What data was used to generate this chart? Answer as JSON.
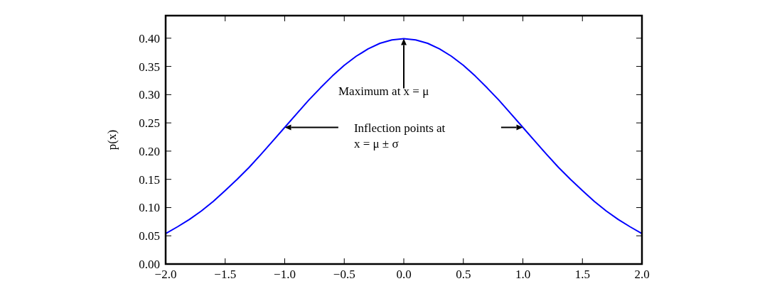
{
  "chart_data": {
    "type": "line",
    "ylabel": "p(x)",
    "x": [
      -2,
      -1.9,
      -1.8,
      -1.7,
      -1.6,
      -1.5,
      -1.4,
      -1.3,
      -1.2,
      -1.1,
      -1,
      -0.9,
      -0.8,
      -0.7,
      -0.6,
      -0.5,
      -0.4,
      -0.3,
      -0.2,
      -0.1,
      0,
      0.1,
      0.2,
      0.3,
      0.4,
      0.5,
      0.6,
      0.7,
      0.8,
      0.9,
      1,
      1.1,
      1.2,
      1.3,
      1.4,
      1.5,
      1.6,
      1.7,
      1.8,
      1.9,
      2
    ],
    "series": [
      {
        "color": "#0000ff",
        "values": [
          0.054,
          0.066,
          0.079,
          0.094,
          0.111,
          0.13,
          0.15,
          0.171,
          0.194,
          0.218,
          0.242,
          0.266,
          0.29,
          0.312,
          0.333,
          0.352,
          0.368,
          0.381,
          0.391,
          0.397,
          0.399,
          0.397,
          0.391,
          0.381,
          0.368,
          0.352,
          0.333,
          0.312,
          0.29,
          0.266,
          0.242,
          0.218,
          0.194,
          0.171,
          0.15,
          0.13,
          0.111,
          0.094,
          0.079,
          0.066,
          0.054
        ]
      }
    ],
    "xlim": [
      -2,
      2
    ],
    "xticks": [
      {
        "value": -2,
        "label": "−2.0"
      },
      {
        "value": -1.5,
        "label": "−1.5"
      },
      {
        "value": -1,
        "label": "−1.0"
      },
      {
        "value": -0.5,
        "label": "−0.5"
      },
      {
        "value": 0,
        "label": "0.0"
      },
      {
        "value": 0.5,
        "label": "0.5"
      },
      {
        "value": 1,
        "label": "1.0"
      },
      {
        "value": 1.5,
        "label": "1.5"
      },
      {
        "value": 2,
        "label": "2.0"
      }
    ],
    "ylim": [
      0,
      0.44
    ],
    "yticks": [
      {
        "value": 0,
        "label": "0.00"
      },
      {
        "value": 0.05,
        "label": "0.05"
      },
      {
        "value": 0.1,
        "label": "0.10"
      },
      {
        "value": 0.15,
        "label": "0.15"
      },
      {
        "value": 0.2,
        "label": "0.20"
      },
      {
        "value": 0.25,
        "label": "0.25"
      },
      {
        "value": 0.3,
        "label": "0.30"
      },
      {
        "value": 0.35,
        "label": "0.35"
      },
      {
        "value": 0.4,
        "label": "0.40"
      }
    ],
    "annotations": [
      {
        "text": "Maximum at x = μ",
        "x": 0,
        "y": 0.399
      },
      "Inflection points at\nx = μ ± σ"
    ],
    "grid": false,
    "marker": "none",
    "line_style": "solid"
  }
}
